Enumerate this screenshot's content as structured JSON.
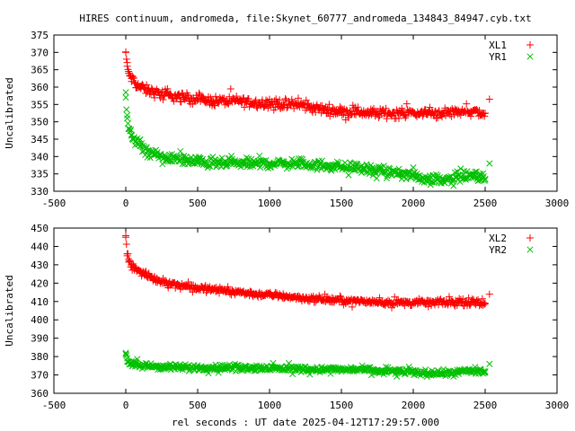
{
  "figure": {
    "title": "HIRES continuum, andromeda, file:Skynet_60777_andromeda_134843_84947.cyb.txt",
    "xlabel": "rel seconds : UT date 2025-04-12T17:29:57.000"
  },
  "colors": {
    "red": "#ff0000",
    "green": "#00c000",
    "axis": "#000000"
  },
  "chart_data": [
    {
      "type": "scatter",
      "title": "",
      "xlabel": "",
      "ylabel": "Uncalibrated",
      "xlim": [
        -500,
        3000
      ],
      "ylim": [
        330,
        375
      ],
      "xticks": [
        -500,
        0,
        500,
        1000,
        1500,
        2000,
        2500,
        3000
      ],
      "yticks": [
        330,
        335,
        340,
        345,
        350,
        355,
        360,
        365,
        370,
        375
      ],
      "legend": "top-right",
      "series": [
        {
          "name": "XL1",
          "marker": "plus",
          "color": "#ff0000",
          "x": [
            0,
            10,
            20,
            40,
            70,
            100,
            150,
            200,
            300,
            400,
            500,
            600,
            700,
            800,
            900,
            1000,
            1100,
            1200,
            1300,
            1400,
            1500,
            1600,
            1700,
            1800,
            1900,
            2000,
            2100,
            2200,
            2300,
            2400,
            2500,
            2530
          ],
          "y": [
            370,
            366,
            364,
            362.5,
            361,
            360,
            359,
            358.5,
            357.5,
            357,
            356.5,
            356,
            356,
            356,
            355.5,
            355.5,
            355,
            355,
            354,
            353.5,
            353,
            353,
            352.5,
            352.5,
            352.5,
            352.5,
            352.5,
            352.5,
            353,
            353,
            352.5,
            356.5
          ]
        },
        {
          "name": "YR1",
          "marker": "cross",
          "color": "#00c000",
          "x": [
            0,
            10,
            20,
            40,
            70,
            100,
            150,
            200,
            300,
            400,
            500,
            600,
            700,
            800,
            900,
            1000,
            1100,
            1200,
            1300,
            1400,
            1500,
            1600,
            1700,
            1800,
            1900,
            2000,
            2100,
            2200,
            2300,
            2400,
            2500,
            2530
          ],
          "y": [
            357,
            351,
            348,
            346,
            344.5,
            343,
            341.5,
            340.5,
            339.5,
            339,
            338.5,
            338,
            338,
            338,
            338,
            338,
            338,
            338,
            337.5,
            337.5,
            337,
            337,
            336,
            335.5,
            335,
            334.5,
            333.5,
            333.5,
            334,
            334.5,
            333.5,
            338
          ]
        }
      ]
    },
    {
      "type": "scatter",
      "title": "",
      "xlabel": "rel seconds : UT date 2025-04-12T17:29:57.000",
      "ylabel": "Uncalibrated",
      "xlim": [
        -500,
        3000
      ],
      "ylim": [
        360,
        450
      ],
      "xticks": [
        -500,
        0,
        500,
        1000,
        1500,
        2000,
        2500,
        3000
      ],
      "yticks": [
        360,
        370,
        380,
        390,
        400,
        410,
        420,
        430,
        440,
        450
      ],
      "legend": "top-right",
      "series": [
        {
          "name": "XL2",
          "marker": "plus",
          "color": "#ff0000",
          "x": [
            0,
            10,
            20,
            40,
            70,
            100,
            150,
            200,
            300,
            400,
            500,
            600,
            700,
            800,
            900,
            1000,
            1100,
            1200,
            1300,
            1400,
            1500,
            1600,
            1700,
            1800,
            1900,
            2000,
            2100,
            2200,
            2300,
            2400,
            2500,
            2530
          ],
          "y": [
            445,
            436,
            433,
            430,
            428,
            426,
            424,
            422,
            420,
            418.5,
            417.5,
            416.5,
            416,
            415,
            414,
            413.5,
            413,
            412,
            411.5,
            411,
            410.5,
            410,
            410,
            409.5,
            409.5,
            409.5,
            409.5,
            409.5,
            409.5,
            409.5,
            409,
            414
          ]
        },
        {
          "name": "YR2",
          "marker": "cross",
          "color": "#00c000",
          "x": [
            0,
            10,
            20,
            40,
            70,
            100,
            150,
            200,
            300,
            400,
            500,
            600,
            700,
            800,
            900,
            1000,
            1100,
            1200,
            1300,
            1400,
            1500,
            1600,
            1700,
            1800,
            1900,
            2000,
            2100,
            2200,
            2300,
            2400,
            2500,
            2530
          ],
          "y": [
            382,
            379,
            377,
            376,
            375.5,
            375,
            375,
            374.5,
            374,
            374,
            374,
            374,
            374,
            374,
            374,
            373.5,
            373.5,
            373.5,
            373,
            373,
            373,
            373,
            372.5,
            372,
            372,
            371.5,
            371,
            371,
            371.5,
            372,
            371.5,
            376
          ]
        }
      ]
    }
  ]
}
